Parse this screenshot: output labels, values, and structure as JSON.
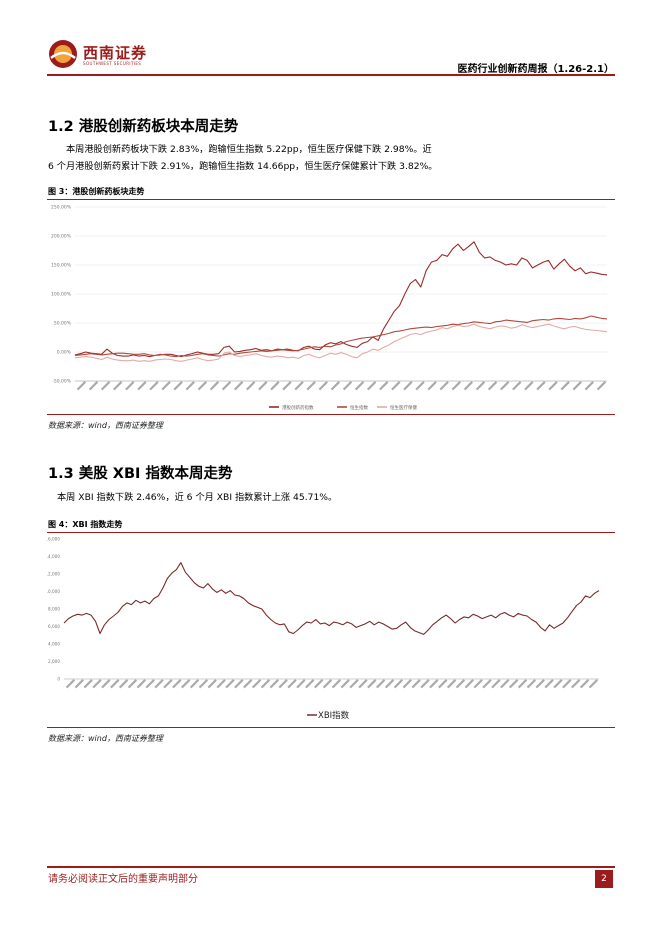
{
  "header": {
    "logo_cn": "西南证券",
    "logo_en": "SOUTHWEST SECURITIES",
    "report_title": "医药行业创新药周报（1.26-2.1）"
  },
  "section1": {
    "title": "1.2 港股创新药板块本周走势",
    "paragraph_line1": "本周港股创新药板块下跌 2.83%，跑输恒生指数 5.22pp，恒生医疗保健下跌 2.98%。近",
    "paragraph_line2": "6 个月港股创新药累计下跌 2.91%，跑输恒生指数 14.66pp，恒生医疗保健累计下跌 3.82%。",
    "figure_label": "图 3：港股创新药板块走势",
    "source": "数据来源：wind，西南证券整理"
  },
  "section2": {
    "title": "1.3 美股 XBI 指数本周走势",
    "paragraph": "本周 XBI 指数下跌 2.46%，近 6 个月 XBI 指数累计上涨 45.71%。",
    "figure_label": "图 4：XBI 指数走势",
    "source": "数据来源：wind，西南证券整理"
  },
  "footer": {
    "disclaimer": "请务必阅读正文后的重要声明部分",
    "page_number": "2"
  },
  "chart_data": [
    {
      "type": "line",
      "y_ticks": [
        "250.00%",
        "200.00%",
        "150.00%",
        "100.00%",
        "50.00%",
        "0.00%",
        "-50.00%"
      ],
      "ylim": [
        -50,
        250
      ],
      "grid": true,
      "legend_position": "bottom",
      "series": [
        {
          "name": "港股创新药指数",
          "color": "#9b2a2a",
          "values": [
            -5,
            -3,
            0,
            -2,
            -3,
            -4,
            5,
            -2,
            -6,
            -7,
            -7,
            -5,
            -7,
            -6,
            -8,
            -6,
            -5,
            -4,
            -4,
            -6,
            -8,
            -5,
            -3,
            0,
            -2,
            -4,
            -4,
            -3,
            8,
            10,
            0,
            1,
            3,
            4,
            6,
            3,
            4,
            2,
            5,
            4,
            5,
            3,
            2,
            8,
            10,
            5,
            4,
            12,
            16,
            14,
            18,
            13,
            10,
            8,
            15,
            18,
            26,
            20,
            40,
            55,
            70,
            80,
            100,
            118,
            125,
            112,
            140,
            155,
            158,
            168,
            165,
            178,
            186,
            175,
            182,
            190,
            172,
            162,
            164,
            158,
            155,
            150,
            152,
            150,
            162,
            158,
            145,
            150,
            155,
            158,
            143,
            152,
            160,
            148,
            140,
            145,
            135,
            138,
            136,
            134,
            133
          ]
        },
        {
          "name": "恒生指数",
          "color": "#b24a3a",
          "values": [
            -6,
            -5,
            -4,
            -3,
            -4,
            -5,
            -4,
            -3,
            -2,
            -2,
            -3,
            -4,
            -4,
            -3,
            -5,
            -6,
            -4,
            -5,
            -7,
            -8,
            -6,
            -7,
            -6,
            -4,
            -3,
            -5,
            -6,
            -7,
            -5,
            -3,
            -4,
            -2,
            -1,
            0,
            1,
            2,
            1,
            2,
            3,
            4,
            3,
            2,
            3,
            5,
            7,
            9,
            8,
            10,
            9,
            12,
            14,
            18,
            20,
            22,
            24,
            25,
            26,
            28,
            30,
            32,
            35,
            36,
            38,
            40,
            41,
            42,
            43,
            42,
            44,
            45,
            46,
            48,
            47,
            49,
            50,
            52,
            51,
            50,
            49,
            52,
            53,
            55,
            54,
            53,
            52,
            51,
            54,
            55,
            56,
            55,
            57,
            58,
            57,
            56,
            58,
            57,
            59,
            62,
            60,
            58,
            57
          ]
        },
        {
          "name": "恒生医疗保健",
          "color": "#e3aaa6",
          "values": [
            -10,
            -9,
            -8,
            -9,
            -11,
            -13,
            -9,
            -12,
            -14,
            -15,
            -15,
            -14,
            -16,
            -15,
            -16,
            -14,
            -13,
            -12,
            -13,
            -15,
            -16,
            -14,
            -12,
            -10,
            -13,
            -15,
            -14,
            -12,
            -2,
            0,
            -6,
            -8,
            -6,
            -5,
            -3,
            -6,
            -8,
            -9,
            -7,
            -8,
            -10,
            -9,
            -11,
            -6,
            -4,
            -8,
            -10,
            -6,
            -2,
            -4,
            -1,
            -4,
            -8,
            -10,
            -3,
            0,
            5,
            3,
            8,
            12,
            18,
            22,
            26,
            30,
            32,
            30,
            34,
            36,
            38,
            42,
            40,
            44,
            46,
            44,
            45,
            48,
            44,
            42,
            40,
            43,
            45,
            44,
            41,
            43,
            47,
            44,
            42,
            44,
            46,
            48,
            45,
            42,
            40,
            43,
            44,
            41,
            39,
            38,
            37,
            36,
            35
          ]
        }
      ]
    },
    {
      "type": "line",
      "y_ticks": [
        "16,000",
        "14,000",
        "12,000",
        "10,000",
        "8,000",
        "6,000",
        "4,000",
        "2,000",
        "0"
      ],
      "ylim": [
        0,
        16000
      ],
      "grid": false,
      "legend_position": "bottom",
      "series": [
        {
          "name": "XBI指数",
          "color": "#7a2a2a",
          "values": [
            6400,
            6900,
            7200,
            7400,
            7300,
            7500,
            7300,
            6600,
            5200,
            6200,
            6800,
            7200,
            7600,
            8300,
            8700,
            8500,
            9000,
            8700,
            8900,
            8600,
            9200,
            9500,
            10400,
            11500,
            12100,
            12500,
            13300,
            12200,
            11600,
            11000,
            10600,
            10400,
            10900,
            10300,
            9900,
            10200,
            9800,
            10100,
            9600,
            9500,
            9200,
            8700,
            8400,
            8200,
            8000,
            7300,
            6800,
            6400,
            6200,
            6300,
            5400,
            5200,
            5600,
            6100,
            6500,
            6400,
            6800,
            6300,
            6400,
            6100,
            6500,
            6400,
            6200,
            6500,
            6300,
            5900,
            6100,
            6300,
            6600,
            6200,
            6500,
            6300,
            6000,
            5700,
            5800,
            6200,
            6500,
            5900,
            5500,
            5300,
            5100,
            5600,
            6200,
            6600,
            7000,
            7300,
            6900,
            6400,
            6800,
            7100,
            7000,
            7400,
            7200,
            6900,
            7100,
            7300,
            7000,
            7400,
            7600,
            7300,
            7100,
            7500,
            7300,
            7200,
            6800,
            6500,
            5900,
            5500,
            6200,
            5800,
            6100,
            6400,
            7000,
            7700,
            8400,
            8800,
            9500,
            9300,
            9800,
            10100
          ]
        }
      ]
    }
  ]
}
